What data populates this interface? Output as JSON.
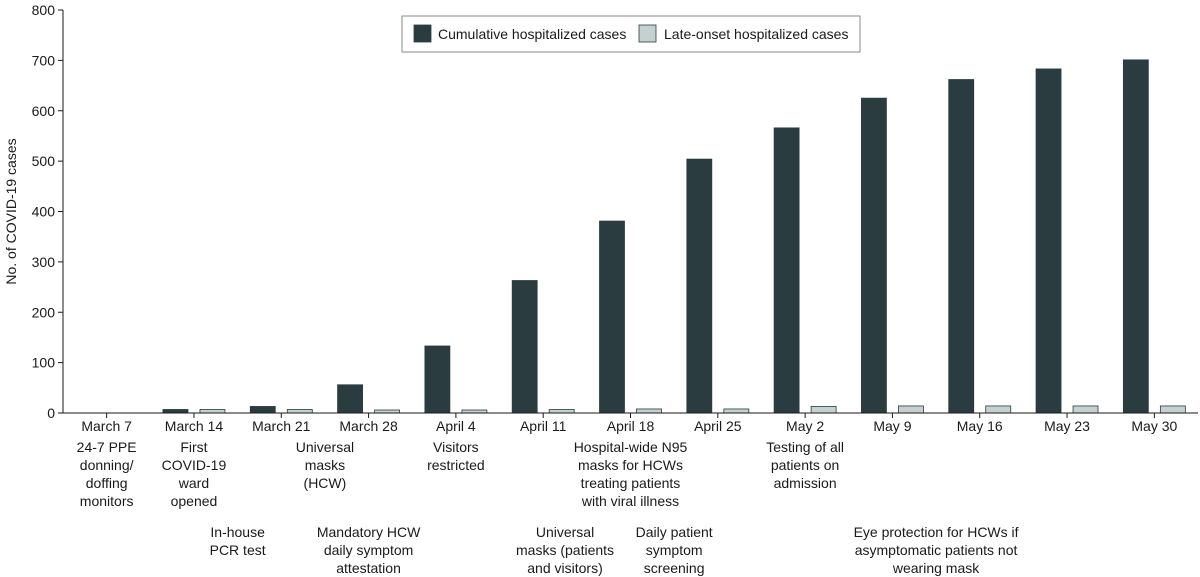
{
  "chart_data": {
    "type": "bar",
    "ylabel": "No. of COVID-19 cases",
    "ylim": [
      0,
      800
    ],
    "yticks": [
      0,
      100,
      200,
      300,
      400,
      500,
      600,
      700,
      800
    ],
    "categories": [
      "March 7",
      "March 14",
      "March 21",
      "March 28",
      "April 4",
      "April 11",
      "April 18",
      "April 25",
      "May 2",
      "May 9",
      "May 16",
      "May 23",
      "May 30"
    ],
    "series": [
      {
        "name": "Cumulative hospitalized cases",
        "color": "#2b3c41",
        "values": [
          0,
          7,
          13,
          56,
          133,
          263,
          381,
          504,
          566,
          625,
          662,
          683,
          701
        ]
      },
      {
        "name": "Late-onset hospitalized cases",
        "color": "#c5d0d0",
        "values": [
          0,
          7,
          7,
          6,
          6,
          7,
          8,
          8,
          13,
          14,
          14,
          14,
          14
        ]
      }
    ],
    "legend_position": "top-center",
    "annotations": [
      {
        "text": "24-7 PPE\ndonning/\ndoffing\nmonitors",
        "category": 0,
        "row": 0
      },
      {
        "text": "First\nCOVID-19\nward\nopened",
        "category": 1,
        "row": 0
      },
      {
        "text": "In-house\nPCR test",
        "category": 1.5,
        "row": 1
      },
      {
        "text": "Universal\nmasks\n(HCW)",
        "category": 2.5,
        "row": 0
      },
      {
        "text": "Mandatory HCW\ndaily symptom\nattestation",
        "category": 3,
        "row": 1
      },
      {
        "text": "Visitors\nrestricted",
        "category": 4,
        "row": 0
      },
      {
        "text": "Hospital-wide N95\nmasks for HCWs\ntreating patients\nwith viral illness",
        "category": 6,
        "row": 0
      },
      {
        "text": "Universal\nmasks (patients\nand visitors)",
        "category": 5.25,
        "row": 1
      },
      {
        "text": "Daily patient\nsymptom\nscreening",
        "category": 6.5,
        "row": 1
      },
      {
        "text": "Testing of all\npatients on\nadmission",
        "category": 8,
        "row": 0
      },
      {
        "text": "Eye protection for HCWs if\nasymptomatic patients not\nwearing mask",
        "category": 9.5,
        "row": 1
      }
    ]
  }
}
